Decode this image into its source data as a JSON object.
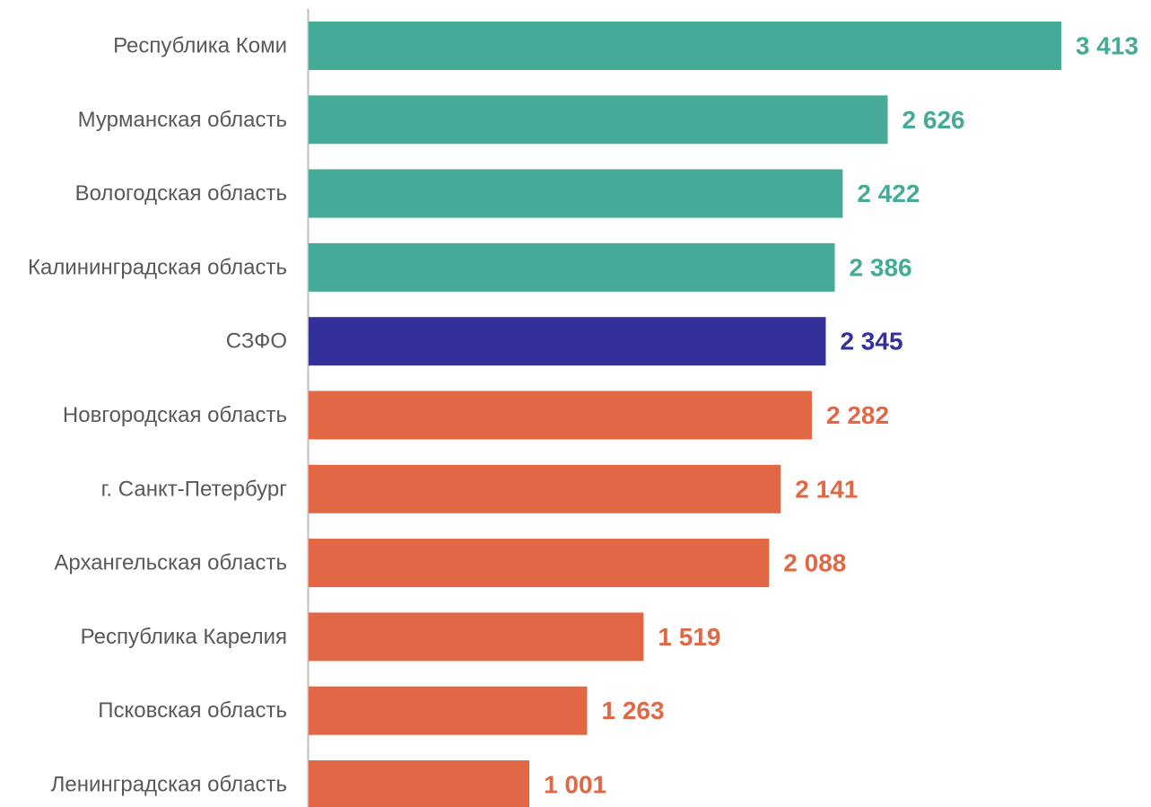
{
  "chart_data": {
    "type": "bar",
    "orientation": "horizontal",
    "categories": [
      "Республика Коми",
      "Мурманская область",
      "Вологодская область",
      "Калининградская область",
      "СЗФО",
      "Новгородская область",
      "г. Санкт-Петербург",
      "Архангельская область",
      "Республика Карелия",
      "Псковская область",
      "Ленинградская область"
    ],
    "values": [
      3413,
      2626,
      2422,
      2386,
      2345,
      2282,
      2141,
      2088,
      1519,
      1263,
      1001
    ],
    "value_labels": [
      "3 413",
      "2 626",
      "2 422",
      "2 386",
      "2 345",
      "2 282",
      "2 141",
      "2 088",
      "1 519",
      "1 263",
      "1 001"
    ],
    "bar_colors": [
      "#45AB96",
      "#45AB96",
      "#45AB96",
      "#45AB96",
      "#343099",
      "#E26845",
      "#E26845",
      "#E26845",
      "#E26845",
      "#E26845",
      "#E26845"
    ],
    "title": "",
    "xlabel": "",
    "ylabel": "",
    "xlim": [
      0,
      3413
    ],
    "grid": false,
    "legend": "none"
  }
}
